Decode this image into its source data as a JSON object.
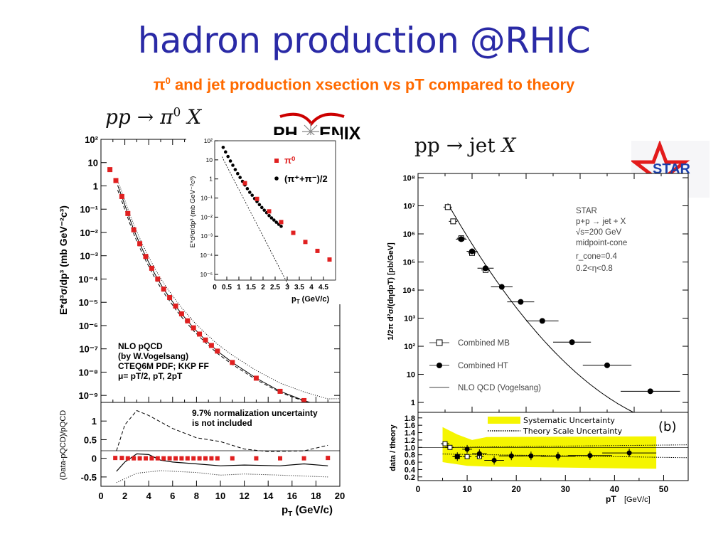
{
  "slide": {
    "title": "hadron production @RHIC",
    "subtitle_symbol": "π",
    "subtitle_sup": "0",
    "subtitle_text": " and jet production xsection vs pT compared to theory",
    "formula_left_a": "pp → π",
    "formula_left_sup": "0",
    "formula_left_b": " X",
    "formula_right_a": "pp → jet ",
    "formula_right_b": "X"
  },
  "logos": {
    "phenix": "PH ENIX",
    "star": "STAR"
  },
  "chart_data": [
    {
      "id": "phenix-main",
      "type": "scatter",
      "ylabel": "E*d³σ/dp³ (mb GeV⁻²c³)",
      "yscale": "log",
      "ylim": [
        1e-09,
        100
      ],
      "y_ticks": [
        "10²",
        "10",
        "1",
        "10⁻¹",
        "10⁻²",
        "10⁻³",
        "10⁻⁴",
        "10⁻⁵",
        "10⁻⁶",
        "10⁻⁷",
        "10⁻⁸",
        "10⁻⁹"
      ],
      "xlim": [
        0,
        20
      ],
      "series": [
        {
          "marker": "red-square",
          "x": [
            0.75,
            1.25,
            1.75,
            2.25,
            2.75,
            3.25,
            3.75,
            4.25,
            4.75,
            5.25,
            5.75,
            6.25,
            6.75,
            7.25,
            7.75,
            8.25,
            8.75,
            9.25,
            9.75,
            11,
            13,
            15,
            17,
            19
          ],
          "y": [
            5,
            1.7,
            0.35,
            0.065,
            0.013,
            0.0033,
            0.00093,
            0.00029,
            0.0001,
            3.7e-05,
            1.6e-05,
            6.9e-06,
            3.2e-06,
            1.6e-06,
            8e-07,
            4.3e-07,
            2.4e-07,
            1.4e-07,
            8e-08,
            2.6e-08,
            5.5e-09,
            1.5e-09,
            6e-10,
            2.9e-10
          ]
        }
      ],
      "annotation": {
        "line1": "NLO pQCD",
        "line2": "(by W.Vogelsang)",
        "line3": "CTEQ6M PDF; KKP FF",
        "line4": "μ= pT/2, pT, 2pT"
      }
    },
    {
      "id": "phenix-ratio",
      "type": "scatter",
      "ylabel": "(Data-pQCD)/pQCD",
      "xlabel": "pT (GeV/c)",
      "xlim": [
        0,
        20
      ],
      "ylim": [
        -0.75,
        1.5
      ],
      "x_ticks": [
        "0",
        "2",
        "4",
        "6",
        "8",
        "10",
        "12",
        "14",
        "16",
        "18",
        "20"
      ],
      "y_ticks": [
        "1",
        "0.5",
        "0",
        "-0.5"
      ],
      "note": {
        "line1": "9.7% normalization uncertainty",
        "line2": "is not included"
      },
      "x": [
        1.2,
        1.75,
        2.25,
        2.75,
        3.25,
        3.75,
        4.25,
        4.75,
        5.25,
        5.75,
        6.25,
        6.75,
        7.25,
        7.75,
        8.25,
        8.75,
        9.25,
        9.75,
        11,
        13,
        15,
        17,
        19
      ],
      "y": [
        0.01,
        0.01,
        0.0,
        0.0,
        0.0,
        0.0,
        0.0,
        0.0,
        0.0,
        0.0,
        0.0,
        0.0,
        0.0,
        0.0,
        0.0,
        0.0,
        0.0,
        0.0,
        0.0,
        0.0,
        0.0,
        0.0,
        0.01
      ]
    },
    {
      "id": "phenix-inset",
      "type": "scatter",
      "ylabel": "E*d³σ/dp³ (mb GeV⁻²c³)",
      "xlabel": "pT (GeV/c)",
      "yscale": "log",
      "ylim": [
        1e-05,
        100
      ],
      "xlim": [
        0,
        5
      ],
      "x_ticks": [
        "0",
        "0.5",
        "1",
        "1.5",
        "2",
        "2.5",
        "3",
        "3.5",
        "4",
        "4.5"
      ],
      "y_ticks": [
        "10²",
        "10",
        "1",
        "10⁻¹",
        "10⁻²",
        "10⁻³",
        "10⁻⁴",
        "10⁻⁵"
      ],
      "series": [
        {
          "name": "π⁰",
          "marker": "red-square",
          "x": [
            1.25,
            1.75,
            2.25,
            2.75,
            3.25,
            3.75,
            4.25,
            4.75
          ],
          "y": [
            0.6,
            0.09,
            0.02,
            0.0055,
            0.0015,
            0.0005,
            0.00017,
            6e-05
          ]
        },
        {
          "name": "(π⁺+π⁻)/2",
          "marker": "black-circle",
          "x": [
            0.35,
            0.45,
            0.55,
            0.65,
            0.75,
            0.85,
            0.95,
            1.05,
            1.15,
            1.25,
            1.35,
            1.45,
            1.55,
            1.65,
            1.75,
            1.85,
            1.95,
            2.05,
            2.15,
            2.25,
            2.35,
            2.45,
            2.55,
            2.65,
            2.75
          ],
          "y": [
            45,
            26,
            15,
            8.7,
            5.2,
            3.1,
            1.9,
            1.2,
            0.75,
            0.48,
            0.31,
            0.2,
            0.14,
            0.094,
            0.065,
            0.045,
            0.032,
            0.023,
            0.017,
            0.012,
            0.0091,
            0.007,
            0.0054,
            0.0042,
            0.0033
          ]
        }
      ]
    },
    {
      "id": "star-main",
      "type": "scatter",
      "ylabel": "1/2π d²σ/(dηdpT) [pb/GeV]",
      "yscale": "log",
      "ylim": [
        1,
        100000000
      ],
      "xlim": [
        0,
        50
      ],
      "y_ticks": [
        "10⁸",
        "10⁷",
        "10⁶",
        "10⁵",
        "10⁴",
        "10³",
        "10²",
        "10",
        "1"
      ],
      "annotation": {
        "line1": "STAR",
        "line2": "p+p → jet + X",
        "line3": "√s=200 GeV",
        "line4": "midpoint-cone",
        "line5": "r_cone=0.4",
        "line6": "0.2<η<0.8"
      },
      "legend": {
        "mb": "Combined MB",
        "ht": "Combined HT",
        "nlo": "NLO QCD (Vogelsang)"
      },
      "series": [
        {
          "name": "Combined MB",
          "marker": "open-square",
          "x": [
            5.5,
            6.5,
            8.0,
            10.0,
            12.5
          ],
          "y": [
            9000000.0,
            2800000.0,
            700000.0,
            210000.0,
            52000.0
          ]
        },
        {
          "name": "Combined HT",
          "marker": "filled-circle",
          "x": [
            8.0,
            10.0,
            12.5,
            15.5,
            19.0,
            23.0,
            28.5,
            35.0,
            43.0
          ],
          "y": [
            650000.0,
            240000.0,
            60000.0,
            13000.0,
            3800.0,
            800.0,
            140.0,
            21.0,
            2.5
          ]
        }
      ]
    },
    {
      "id": "star-ratio",
      "type": "scatter",
      "ylabel": "data / theory",
      "xlabel": "pT",
      "xlabel_unit": "[GeV/c]",
      "xlim": [
        0,
        55
      ],
      "ylim": [
        0.1,
        1.95
      ],
      "x_ticks": [
        "0",
        "10",
        "20",
        "30",
        "40",
        "50"
      ],
      "y_ticks": [
        "1.8",
        "1.6",
        "1.4",
        "1.2",
        "1.0",
        "0.8",
        "0.6",
        "0.4",
        "0.2"
      ],
      "label_b": "(b)",
      "legend": {
        "sys": "Systematic Uncertainty",
        "scale": "Theory Scale Uncertainty"
      },
      "series": [
        {
          "name": "Combined MB",
          "marker": "open-square",
          "x": [
            5.5,
            6.5,
            8.0,
            10.0,
            12.5
          ],
          "y": [
            1.1,
            1.0,
            0.75,
            0.75,
            0.75
          ]
        },
        {
          "name": "Combined HT",
          "marker": "filled-circle",
          "x": [
            8.0,
            10.0,
            12.5,
            15.5,
            19.0,
            23.0,
            28.5,
            35.0,
            43.0
          ],
          "y": [
            0.75,
            0.95,
            0.83,
            0.65,
            0.77,
            0.77,
            0.76,
            0.78,
            0.85
          ]
        }
      ]
    }
  ],
  "colors": {
    "title": "#2a2aa6",
    "subtitle": "#ff6a00",
    "red_marker": "#e02020",
    "band": "#f5f500",
    "phenix_arc": "#cc0000",
    "star_red": "#e31b1b",
    "star_blue": "#1a3faa"
  }
}
